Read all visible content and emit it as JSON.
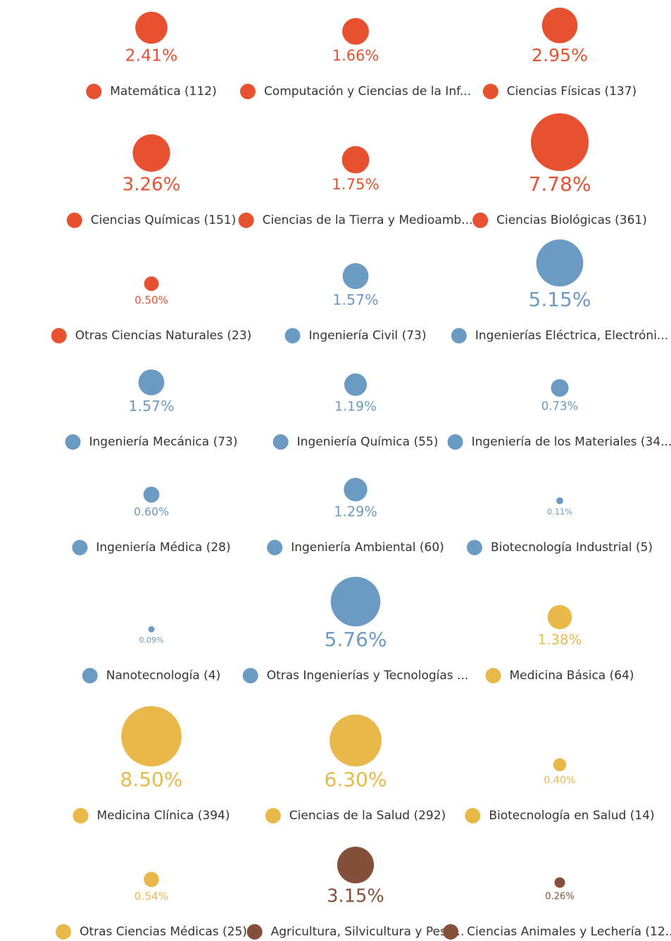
{
  "chart_data": {
    "type": "bubble",
    "categories": [
      "Matemática (112)",
      "Computación y Ciencias de la Inf...",
      "Ciencias Físicas (137)",
      "Ciencias Químicas (151)",
      "Ciencias de la Tierra y Medioamb...",
      "Ciencias Biológicas (361)",
      "Otras Ciencias Naturales (23)",
      "Ingeniería Civil (73)",
      "Ingenierías Eléctrica, Electróni...",
      "Ingeniería Mecánica (73)",
      "Ingeniería Química (55)",
      "Ingeniería de los Materiales (34...",
      "Ingeniería Médica (28)",
      "Ingeniería Ambiental (60)",
      "Biotecnología Industrial (5)",
      "Nanotecnología (4)",
      "Otras Ingenierías y Tecnologías ...",
      "Medicina Básica (64)",
      "Medicina Clínica (394)",
      "Ciencias de la Salud (292)",
      "Biotecnología en Salud (14)",
      "Otras Ciencias Médicas (25)",
      "Agricultura, Silvicultura y Pesc...",
      "Ciencias Animales y Lechería (12..."
    ],
    "values": [
      2.41,
      1.66,
      2.95,
      3.26,
      1.75,
      7.78,
      0.5,
      1.57,
      5.15,
      1.57,
      1.19,
      0.73,
      0.6,
      1.29,
      0.11,
      0.09,
      5.76,
      1.38,
      8.5,
      6.3,
      0.4,
      0.54,
      3.15,
      0.26
    ],
    "value_labels": [
      "2.41%",
      "1.66%",
      "2.95%",
      "3.26%",
      "1.75%",
      "7.78%",
      "0.50%",
      "1.57%",
      "5.15%",
      "1.57%",
      "1.19%",
      "0.73%",
      "0.60%",
      "1.29%",
      "0.11%",
      "0.09%",
      "5.76%",
      "1.38%",
      "8.50%",
      "6.30%",
      "0.40%",
      "0.54%",
      "3.15%",
      "0.26%"
    ],
    "colors": [
      "#e8512f",
      "#e8512f",
      "#e8512f",
      "#e8512f",
      "#e8512f",
      "#e8512f",
      "#e8512f",
      "#6b9bc3",
      "#6b9bc3",
      "#6b9bc3",
      "#6b9bc3",
      "#6b9bc3",
      "#6b9bc3",
      "#6b9bc3",
      "#6b9bc3",
      "#6b9bc3",
      "#6b9bc3",
      "#e8b84a",
      "#e8b84a",
      "#e8b84a",
      "#e8b84a",
      "#e8b84a",
      "#85503a",
      "#85503a"
    ]
  }
}
